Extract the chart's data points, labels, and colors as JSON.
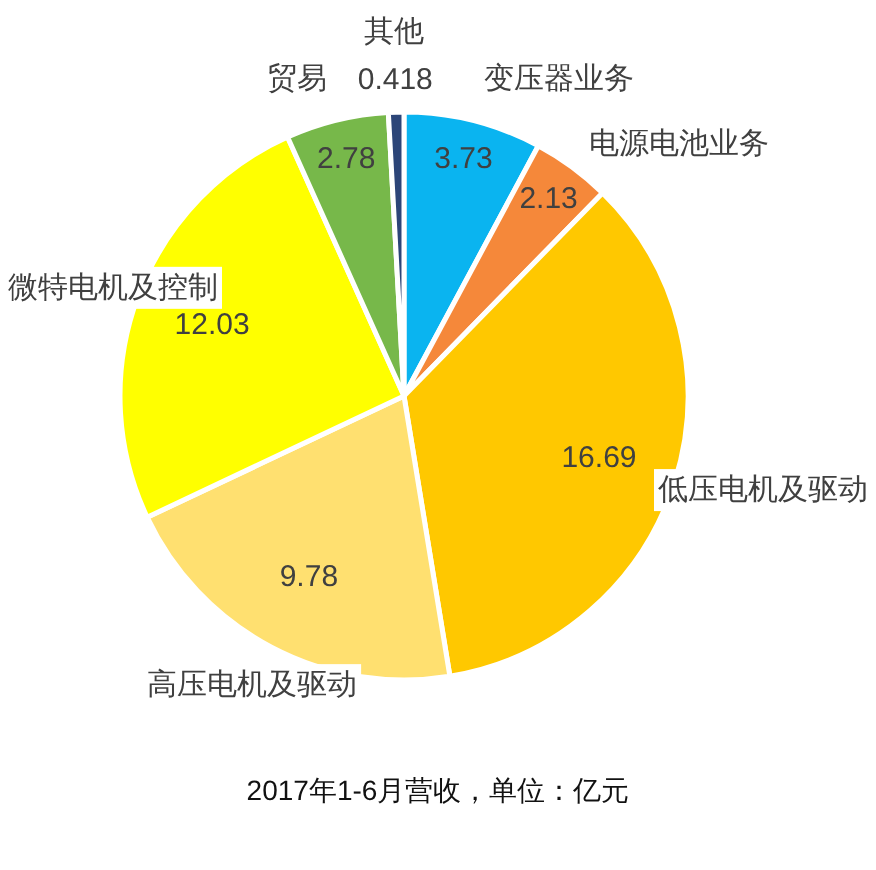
{
  "chart_data": {
    "type": "pie",
    "title": "2017年1-6月营收，单位：亿元",
    "categories": [
      "变压器业务",
      "电源电池业务",
      "低压电机及驱动",
      "高压电机及驱动",
      "微特电机及控制",
      "贸易",
      "其他"
    ],
    "values": [
      3.73,
      2.13,
      16.69,
      9.78,
      12.03,
      2.78,
      0.418
    ],
    "colors": [
      "#0ab4f0",
      "#f5883a",
      "#ffc800",
      "#ffe070",
      "#ffff00",
      "#77b84a",
      "#2c4578"
    ],
    "data_labels": true
  }
}
